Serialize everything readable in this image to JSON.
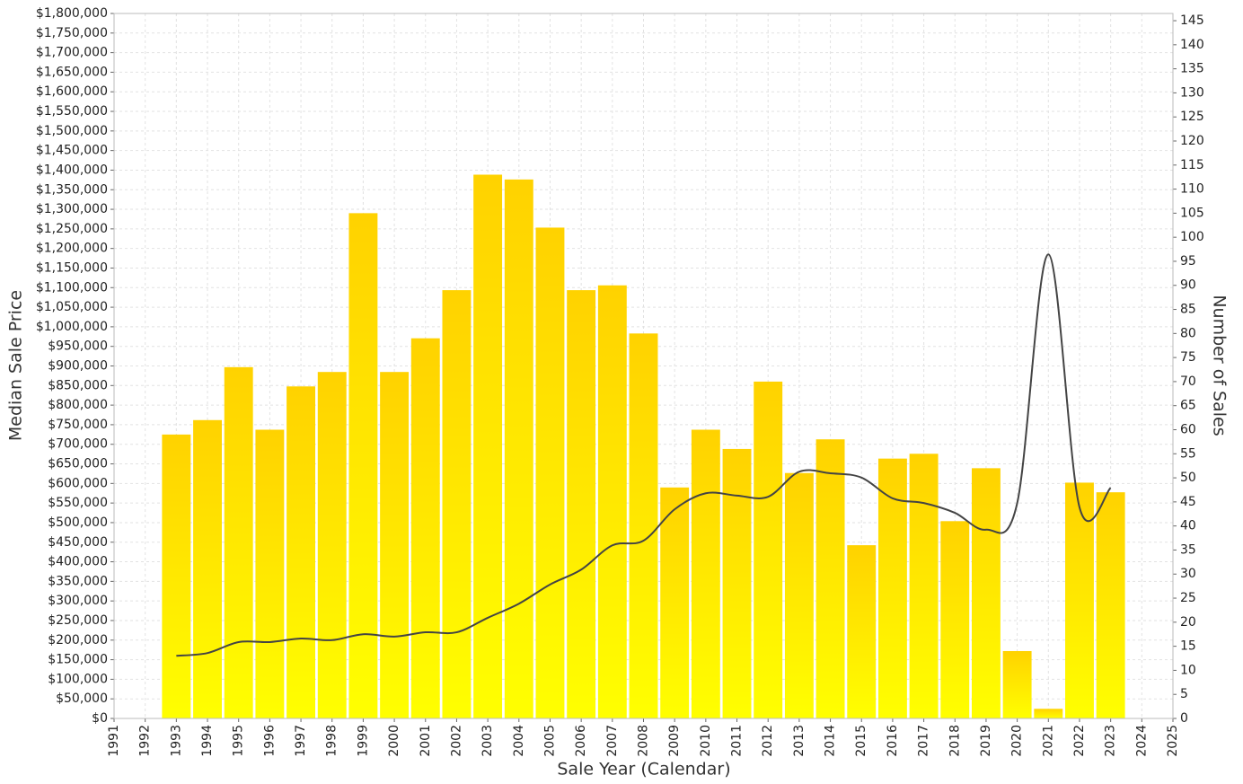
{
  "chart_data": {
    "type": "bar",
    "x_label": "Sale Year (Calendar)",
    "y_label": "Median Sale Price",
    "y2_label": "Number of Sales",
    "x": [
      1993,
      1994,
      1995,
      1996,
      1997,
      1998,
      1999,
      2000,
      2001,
      2002,
      2003,
      2004,
      2005,
      2006,
      2007,
      2008,
      2009,
      2010,
      2011,
      2012,
      2013,
      2014,
      2015,
      2016,
      2017,
      2018,
      2019,
      2020,
      2021,
      2022,
      2023
    ],
    "series": [
      {
        "type": "bar",
        "axis": "y2",
        "color": [
          "#ffd200",
          "#ffff00"
        ],
        "values": [
          59,
          62,
          73,
          60,
          69,
          72,
          105,
          72,
          79,
          89,
          113,
          112,
          102,
          89,
          90,
          80,
          48,
          60,
          56,
          70,
          51,
          58,
          36,
          54,
          55,
          41,
          52,
          14,
          2,
          49,
          47
        ]
      },
      {
        "type": "line",
        "axis": "y",
        "color": "#444444",
        "values": [
          160000,
          167000,
          195000,
          195000,
          204000,
          200000,
          215000,
          209000,
          220000,
          220000,
          257000,
          293000,
          342000,
          380000,
          442000,
          454000,
          534000,
          575000,
          569000,
          566000,
          630000,
          626000,
          615000,
          562000,
          550000,
          525000,
          482000,
          550000,
          1185000,
          539000,
          589000
        ]
      }
    ],
    "xlim": [
      1991,
      2025
    ],
    "xticks": [
      1991,
      1992,
      1993,
      1994,
      1995,
      1996,
      1997,
      1998,
      1999,
      2000,
      2001,
      2002,
      2003,
      2004,
      2005,
      2006,
      2007,
      2008,
      2009,
      2010,
      2011,
      2012,
      2013,
      2014,
      2015,
      2016,
      2017,
      2018,
      2019,
      2020,
      2021,
      2022,
      2023,
      2024,
      2025
    ],
    "ylim": [
      0,
      1800000
    ],
    "yticks": [
      {
        "value": 0,
        "label": "$0"
      },
      {
        "value": 50000,
        "label": "$50,000"
      },
      {
        "value": 100000,
        "label": "$100,000"
      },
      {
        "value": 150000,
        "label": "$150,000"
      },
      {
        "value": 200000,
        "label": "$200,000"
      },
      {
        "value": 250000,
        "label": "$250,000"
      },
      {
        "value": 300000,
        "label": "$300,000"
      },
      {
        "value": 350000,
        "label": "$350,000"
      },
      {
        "value": 400000,
        "label": "$400,000"
      },
      {
        "value": 450000,
        "label": "$450,000"
      },
      {
        "value": 500000,
        "label": "$500,000"
      },
      {
        "value": 550000,
        "label": "$550,000"
      },
      {
        "value": 600000,
        "label": "$600,000"
      },
      {
        "value": 650000,
        "label": "$650,000"
      },
      {
        "value": 700000,
        "label": "$700,000"
      },
      {
        "value": 750000,
        "label": "$750,000"
      },
      {
        "value": 800000,
        "label": "$800,000"
      },
      {
        "value": 850000,
        "label": "$850,000"
      },
      {
        "value": 900000,
        "label": "$900,000"
      },
      {
        "value": 950000,
        "label": "$950,000"
      },
      {
        "value": 1000000,
        "label": "$1,000,000"
      },
      {
        "value": 1050000,
        "label": "$1,050,000"
      },
      {
        "value": 1100000,
        "label": "$1,100,000"
      },
      {
        "value": 1150000,
        "label": "$1,150,000"
      },
      {
        "value": 1200000,
        "label": "$1,200,000"
      },
      {
        "value": 1250000,
        "label": "$1,250,000"
      },
      {
        "value": 1300000,
        "label": "$1,300,000"
      },
      {
        "value": 1350000,
        "label": "$1,350,000"
      },
      {
        "value": 1400000,
        "label": "$1,400,000"
      },
      {
        "value": 1450000,
        "label": "$1,450,000"
      },
      {
        "value": 1500000,
        "label": "$1,500,000"
      },
      {
        "value": 1550000,
        "label": "$1,550,000"
      },
      {
        "value": 1600000,
        "label": "$1,600,000"
      },
      {
        "value": 1650000,
        "label": "$1,650,000"
      },
      {
        "value": 1700000,
        "label": "$1,700,000"
      },
      {
        "value": 1750000,
        "label": "$1,750,000"
      },
      {
        "value": 1800000,
        "label": "$1,800,000"
      }
    ],
    "y2lim": [
      0,
      146.5
    ],
    "y2ticks": [
      0,
      5,
      10,
      15,
      20,
      25,
      30,
      35,
      40,
      45,
      50,
      55,
      60,
      65,
      70,
      75,
      80,
      85,
      90,
      95,
      100,
      105,
      110,
      115,
      120,
      125,
      130,
      135,
      140,
      145
    ],
    "grid": true
  }
}
